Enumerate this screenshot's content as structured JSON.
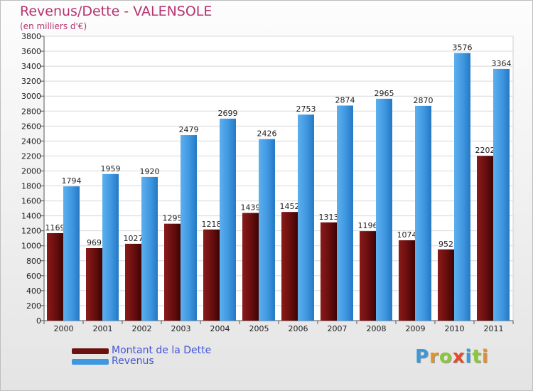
{
  "header": {
    "title": "Revenus/Dette - VALENSOLE",
    "subtitle": "(en milliers d'€)"
  },
  "colors": {
    "dette": "#6b0f0f",
    "revenus": "#3f97e0",
    "title": "#b5336f",
    "legend_text": "#4355d6"
  },
  "chart_data": {
    "type": "bar",
    "title": "Revenus/Dette - VALENSOLE",
    "subtitle": "(en milliers d'€)",
    "categories": [
      "2000",
      "2001",
      "2002",
      "2003",
      "2004",
      "2005",
      "2006",
      "2007",
      "2008",
      "2009",
      "2010",
      "2011"
    ],
    "series": [
      {
        "name": "Montant de la Dette",
        "values": [
          1169,
          969,
          1027,
          1295,
          1218,
          1439,
          1452,
          1313,
          1196,
          1074,
          952,
          2202
        ]
      },
      {
        "name": "Revenus",
        "values": [
          1794,
          1959,
          1920,
          2479,
          2699,
          2426,
          2753,
          2874,
          2965,
          2870,
          3576,
          3364
        ]
      }
    ],
    "ylim": [
      0,
      3800
    ],
    "yticks": [
      0,
      200,
      400,
      600,
      800,
      1000,
      1200,
      1400,
      1600,
      1800,
      2000,
      2200,
      2400,
      2600,
      2800,
      3000,
      3200,
      3400,
      3600,
      3800
    ],
    "grid": true,
    "legend": "bottom-left"
  },
  "legend": {
    "items": [
      {
        "label": "Montant de la Dette",
        "color": "#6b0f0f"
      },
      {
        "label": "Revenus",
        "color": "#3f97e0"
      }
    ]
  },
  "logo": {
    "letters": [
      "P",
      "r",
      "o",
      "x",
      "i",
      "t",
      "i"
    ],
    "colors": [
      "#3a9ad9",
      "#e3912e",
      "#8cc63e",
      "#e34b2a",
      "#3a9ad9",
      "#8cc63e",
      "#e3912e"
    ]
  }
}
